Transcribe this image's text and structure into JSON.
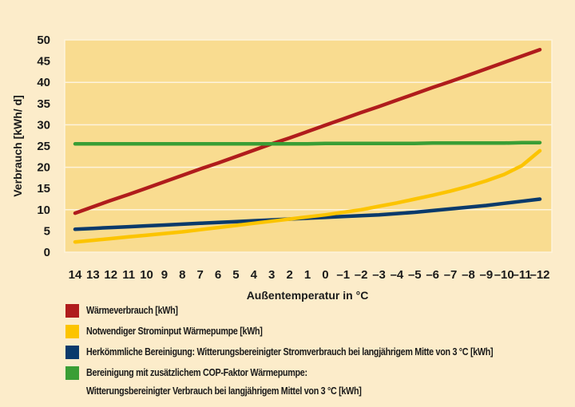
{
  "chart_data": {
    "type": "line",
    "title": "",
    "xlabel": "Außentemperatur in °C",
    "ylabel": "Verbrauch [kWh/ d]",
    "ylim": [
      0,
      50
    ],
    "yticks": [
      0,
      5,
      10,
      15,
      20,
      25,
      30,
      35,
      40,
      45,
      50
    ],
    "x": [
      14,
      13,
      12,
      11,
      10,
      9,
      8,
      7,
      6,
      5,
      4,
      3,
      2,
      1,
      0,
      -1,
      -2,
      -3,
      -4,
      -5,
      -6,
      -7,
      -8,
      -9,
      -10,
      -11,
      -12
    ],
    "x_tick_labels": [
      "14",
      "13",
      "12",
      "11",
      "10",
      "9",
      "8",
      "7",
      "6",
      "5",
      "4",
      "3",
      "2",
      "1",
      "0",
      "–1",
      "–2",
      "–3",
      "–4",
      "–5",
      "–6",
      "–7",
      "–8",
      "–9",
      "–10",
      "–11",
      "–12"
    ],
    "grid": "horizontal",
    "legend_position": "bottom",
    "series": [
      {
        "name": "Wärmeverbrauch [kWh]",
        "color": "#b01c1c",
        "values": [
          9.2,
          10.7,
          12.2,
          13.6,
          15.1,
          16.6,
          18.1,
          19.6,
          21.0,
          22.5,
          24.0,
          25.5,
          26.9,
          28.4,
          29.9,
          31.4,
          32.9,
          34.3,
          35.8,
          37.3,
          38.8,
          40.2,
          41.7,
          43.2,
          44.7,
          46.2,
          47.7
        ]
      },
      {
        "name": "Notwendiger Strominput Wärmepumpe [kWh]",
        "color": "#fcc400",
        "values": [
          2.4,
          2.8,
          3.2,
          3.6,
          4.0,
          4.4,
          4.8,
          5.3,
          5.8,
          6.3,
          6.8,
          7.3,
          7.8,
          8.3,
          8.8,
          9.4,
          10.0,
          10.8,
          11.6,
          12.5,
          13.4,
          14.4,
          15.5,
          16.8,
          18.3,
          20.4,
          23.9
        ]
      },
      {
        "name": "Herkömmliche Bereinigung: Witterungsbereinigter Stromverbrauch bei langjährigem Mitte von 3 °C [kWh]",
        "color": "#0a3a6b",
        "values": [
          5.4,
          5.6,
          5.8,
          6.0,
          6.2,
          6.4,
          6.6,
          6.8,
          7.0,
          7.2,
          7.4,
          7.6,
          7.8,
          8.0,
          8.2,
          8.4,
          8.6,
          8.8,
          9.1,
          9.4,
          9.8,
          10.2,
          10.6,
          11.0,
          11.5,
          12.0,
          12.5
        ]
      },
      {
        "name": "Bereinigung mit zusätzlichem COP-Faktor Wärmepumpe: Witterungsbereinigter Verbrauch bei langjährigem Mittel von 3 °C [kWh]",
        "color": "#3a9e35",
        "values": [
          25.5,
          25.5,
          25.5,
          25.5,
          25.5,
          25.5,
          25.5,
          25.5,
          25.5,
          25.5,
          25.5,
          25.5,
          25.5,
          25.5,
          25.6,
          25.6,
          25.6,
          25.6,
          25.6,
          25.6,
          25.7,
          25.7,
          25.7,
          25.7,
          25.7,
          25.8,
          25.8
        ]
      }
    ]
  },
  "legend": {
    "items": [
      {
        "label": "Wärmeverbrauch [kWh]",
        "color": "#b01c1c"
      },
      {
        "label": "Notwendiger Strominput Wärmepumpe [kWh]",
        "color": "#fcc400"
      },
      {
        "label": "Herkömmliche Bereinigung: Witterungsbereinigter Stromverbrauch bei langjährigem Mitte von 3 °C [kWh]",
        "color": "#0a3a6b"
      },
      {
        "label": "Bereinigung mit zusätzlichem COP-Faktor Wärmepumpe:",
        "label_line2": "Witterungsbereinigter Verbrauch bei langjährigem Mittel von 3 °C [kWh]",
        "color": "#3a9e35"
      }
    ]
  },
  "colors": {
    "page_background": "#fcecca",
    "plot_background": "#f9dc90",
    "gridline": "#fdf3dc"
  }
}
